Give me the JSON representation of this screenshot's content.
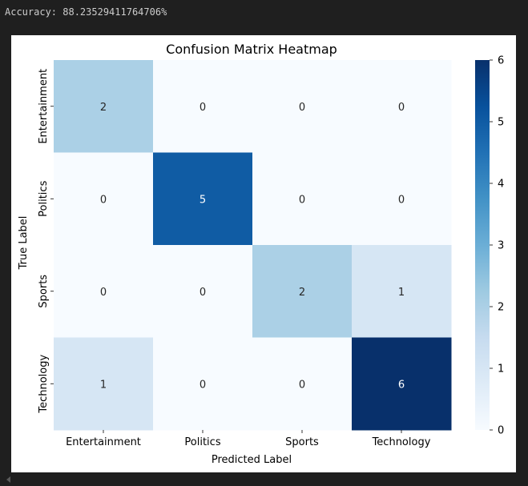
{
  "output": {
    "accuracy_text": "Accuracy: 88.23529411764706%"
  },
  "chart_data": {
    "type": "heatmap",
    "title": "Confusion Matrix Heatmap",
    "xlabel": "Predicted Label",
    "ylabel": "True Label",
    "x_categories": [
      "Entertainment",
      "Politics",
      "Sports",
      "Technology"
    ],
    "y_categories": [
      "Entertainment",
      "Politics",
      "Sports",
      "Technology"
    ],
    "values": [
      [
        2,
        0,
        0,
        0
      ],
      [
        0,
        5,
        0,
        0
      ],
      [
        0,
        0,
        2,
        1
      ],
      [
        1,
        0,
        0,
        6
      ]
    ],
    "colormap": "Blues",
    "vmin": 0,
    "vmax": 6,
    "colorbar_ticks": [
      "0",
      "1",
      "2",
      "3",
      "4",
      "5",
      "6"
    ],
    "annotations": true
  },
  "scrollbar": {
    "left_arrow_icon": "chevron-left-icon"
  }
}
